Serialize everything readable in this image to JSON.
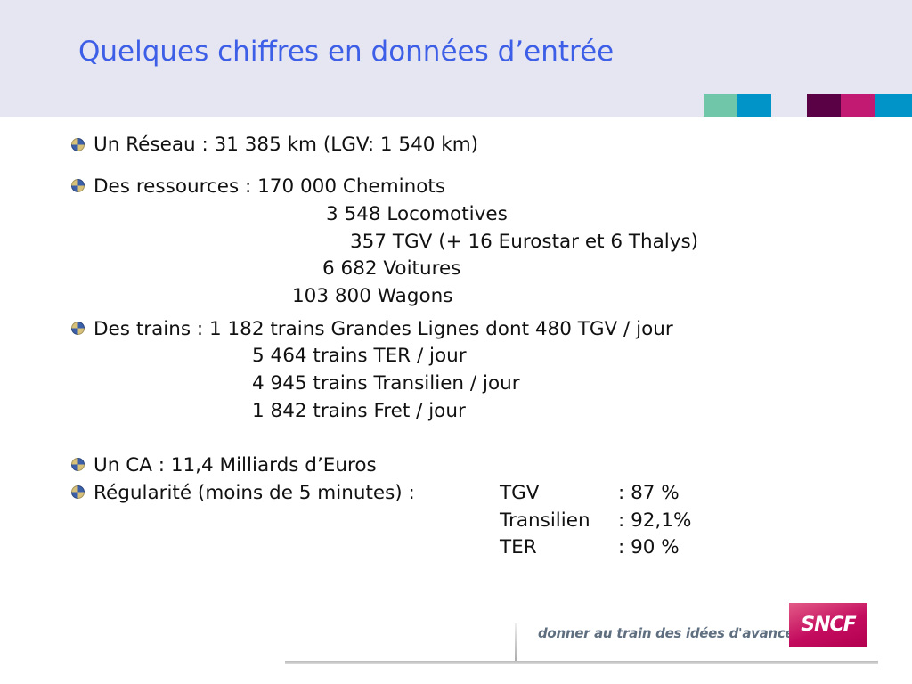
{
  "slide": {
    "title": "Quelques chiffres en données d’entrée",
    "accent_colors": [
      "#6fc6a8",
      "#0094c9",
      "#5a0045",
      "#c21a73",
      "#0094c9"
    ],
    "lines": {
      "l1": "Un Réseau :  31 385 km (LGV: 1 540 km)",
      "l2": "Des ressources : 170 000  Cheminots",
      "l3": "3 548  Locomotives",
      "l4": "357  TGV (+ 16 Eurostar et 6 Thalys)",
      "l5": "6 682    Voitures",
      "l6": "103 800    Wagons",
      "l7": "Des trains :  1 182 trains Grandes Lignes dont 480 TGV / jour",
      "l8": "5 464 trains TER / jour",
      "l9": "4 945 trains Transilien / jour",
      "l10": "1 842 trains Fret / jour",
      "l11": "Un CA : 11,4 Milliards d’Euros",
      "l12": "Régularité (moins de 5 minutes) :",
      "reg": [
        {
          "name": "TGV",
          "value": ": 87   %"
        },
        {
          "name": "Transilien",
          "value": ": 92,1%"
        },
        {
          "name": "TER",
          "value": ": 90   %"
        }
      ]
    }
  },
  "footer": {
    "tagline": "donner au train des idées d'avance",
    "logo_text": "SNCF",
    "logo_color": "#c40c5f"
  }
}
